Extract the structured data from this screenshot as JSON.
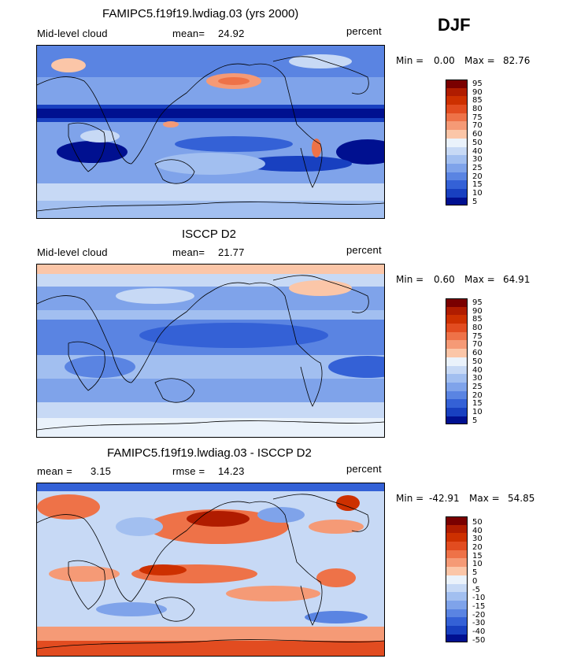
{
  "season": "DJF",
  "panels": [
    {
      "title": "FAMIPC5.f19f19.lwdiag.03 (yrs 2000)",
      "left_label": "Mid-level cloud",
      "center_label": "mean=",
      "center_value": "24.92",
      "units": "percent",
      "min_label": "Min =",
      "min_value": "0.00",
      "max_label": "Max =",
      "max_value": "82.76",
      "levels": [
        "95",
        "90",
        "85",
        "80",
        "75",
        "70",
        "60",
        "50",
        "40",
        "30",
        "25",
        "20",
        "15",
        "10",
        "5"
      ],
      "colors": [
        "#7a0000",
        "#b01c00",
        "#cd3000",
        "#e24c20",
        "#ee7248",
        "#f59a76",
        "#fbc6a8",
        "#eaf2fb",
        "#c7d9f5",
        "#a2bff0",
        "#7fa3ea",
        "#5a84e2",
        "#3461d6",
        "#1840c0",
        "#001090"
      ]
    },
    {
      "title": "ISCCP D2",
      "left_label": "Mid-level cloud",
      "center_label": "mean=",
      "center_value": "21.77",
      "units": "percent",
      "min_label": "Min =",
      "min_value": "0.60",
      "max_label": "Max =",
      "max_value": "64.91",
      "levels": [
        "95",
        "90",
        "85",
        "80",
        "75",
        "70",
        "60",
        "50",
        "40",
        "30",
        "25",
        "20",
        "15",
        "10",
        "5"
      ],
      "colors": [
        "#7a0000",
        "#b01c00",
        "#cd3000",
        "#e24c20",
        "#ee7248",
        "#f59a76",
        "#fbc6a8",
        "#eaf2fb",
        "#c7d9f5",
        "#a2bff0",
        "#7fa3ea",
        "#5a84e2",
        "#3461d6",
        "#1840c0",
        "#001090"
      ]
    },
    {
      "title": "FAMIPC5.f19f19.lwdiag.03 - ISCCP D2",
      "left_label": "mean =",
      "left_value": "3.15",
      "center_label": "rmse =",
      "center_value": "14.23",
      "units": "percent",
      "min_label": "Min =",
      "min_value": "-42.91",
      "max_label": "Max =",
      "max_value": "54.85",
      "levels": [
        "50",
        "40",
        "30",
        "20",
        "15",
        "10",
        "5",
        "0",
        "-5",
        "-10",
        "-15",
        "-20",
        "-30",
        "-40",
        "-50"
      ],
      "colors": [
        "#7a0000",
        "#b01c00",
        "#cd3000",
        "#e24c20",
        "#ee7248",
        "#f59a76",
        "#fbc6a8",
        "#eaf2fb",
        "#c7d9f5",
        "#a2bff0",
        "#7fa3ea",
        "#5a84e2",
        "#3461d6",
        "#1840c0",
        "#001090"
      ]
    }
  ]
}
